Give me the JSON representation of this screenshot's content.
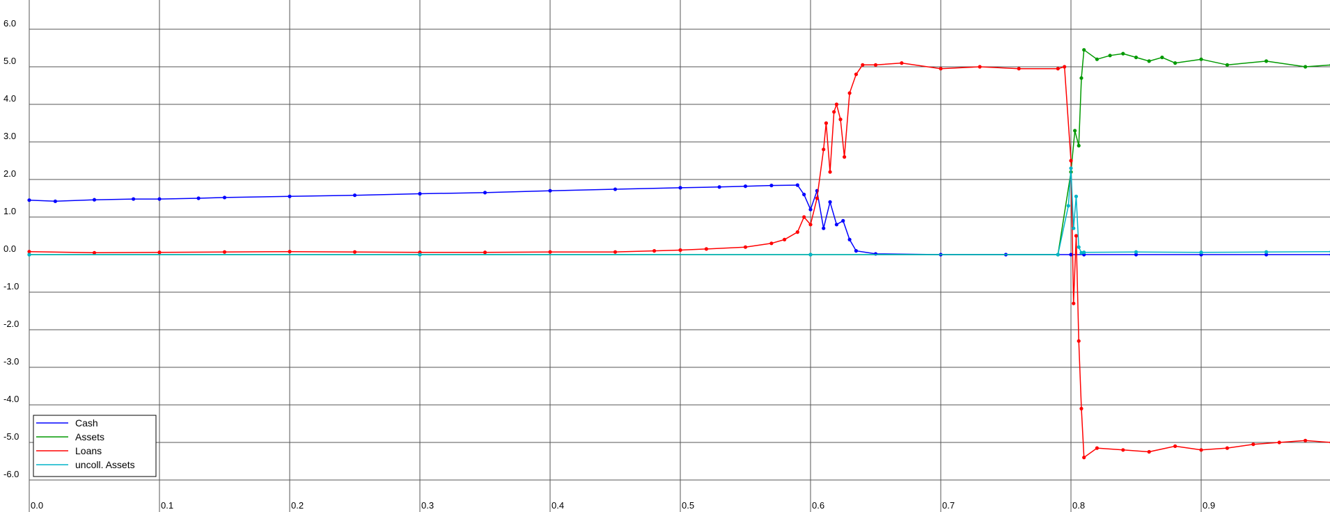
{
  "chart_data": {
    "type": "line",
    "title": "",
    "xlabel": "",
    "ylabel": "",
    "xlim": [
      0.0,
      1.0
    ],
    "ylim": [
      -6.5,
      6.5
    ],
    "x_ticks": [
      {
        "value": 0.0,
        "label": "0.0"
      },
      {
        "value": 0.1,
        "label": "0.1"
      },
      {
        "value": 0.2,
        "label": "0.2"
      },
      {
        "value": 0.3,
        "label": "0.3"
      },
      {
        "value": 0.4,
        "label": "0.4"
      },
      {
        "value": 0.5,
        "label": "0.5"
      },
      {
        "value": 0.6,
        "label": "0.6"
      },
      {
        "value": 0.7,
        "label": "0.7"
      },
      {
        "value": 0.8,
        "label": "0.8"
      },
      {
        "value": 0.9,
        "label": "0.9"
      }
    ],
    "y_ticks": [
      {
        "value": 6,
        "label": "6.0"
      },
      {
        "value": 5,
        "label": "5.0"
      },
      {
        "value": 4,
        "label": "4.0"
      },
      {
        "value": 3,
        "label": "3.0"
      },
      {
        "value": 2,
        "label": "2.0"
      },
      {
        "value": 1,
        "label": "1.0"
      },
      {
        "value": 0,
        "label": "0.0"
      },
      {
        "value": -1,
        "label": "-1.0"
      },
      {
        "value": -2,
        "label": "-2.0"
      },
      {
        "value": -3,
        "label": "-3.0"
      },
      {
        "value": -4,
        "label": "-4.0"
      },
      {
        "value": -5,
        "label": "-5.0"
      },
      {
        "value": -6,
        "label": "-6.0"
      }
    ],
    "grid": true,
    "legend_position": "bottom-left",
    "series": [
      {
        "name": "Cash",
        "color": "#0000ff",
        "x": [
          0.0,
          0.02,
          0.05,
          0.08,
          0.1,
          0.13,
          0.15,
          0.2,
          0.25,
          0.3,
          0.35,
          0.4,
          0.45,
          0.5,
          0.53,
          0.55,
          0.57,
          0.59,
          0.595,
          0.6,
          0.605,
          0.61,
          0.615,
          0.62,
          0.625,
          0.63,
          0.635,
          0.65,
          0.7,
          0.75,
          0.8,
          0.81,
          0.85,
          0.9,
          0.95,
          1.0
        ],
        "values": [
          1.45,
          1.42,
          1.46,
          1.48,
          1.48,
          1.5,
          1.52,
          1.55,
          1.58,
          1.62,
          1.65,
          1.7,
          1.74,
          1.78,
          1.8,
          1.82,
          1.84,
          1.85,
          1.6,
          1.2,
          1.7,
          0.7,
          1.4,
          0.8,
          0.9,
          0.4,
          0.1,
          0.02,
          0.0,
          0.0,
          0.0,
          0.0,
          0.0,
          0.0,
          0.0,
          0.0
        ]
      },
      {
        "name": "Assets",
        "color": "#009900",
        "x": [
          0.0,
          0.3,
          0.6,
          0.79,
          0.8,
          0.803,
          0.806,
          0.808,
          0.81,
          0.82,
          0.83,
          0.84,
          0.85,
          0.86,
          0.87,
          0.88,
          0.9,
          0.92,
          0.95,
          0.98,
          1.0
        ],
        "values": [
          0.0,
          0.0,
          0.0,
          0.0,
          2.2,
          3.3,
          2.9,
          4.7,
          5.45,
          5.2,
          5.3,
          5.35,
          5.25,
          5.15,
          5.25,
          5.1,
          5.2,
          5.05,
          5.15,
          5.0,
          5.05
        ]
      },
      {
        "name": "Loans",
        "color": "#ff0000",
        "x": [
          0.0,
          0.05,
          0.1,
          0.15,
          0.2,
          0.25,
          0.3,
          0.35,
          0.4,
          0.45,
          0.48,
          0.5,
          0.52,
          0.55,
          0.57,
          0.58,
          0.59,
          0.595,
          0.6,
          0.605,
          0.61,
          0.612,
          0.615,
          0.618,
          0.62,
          0.623,
          0.626,
          0.63,
          0.635,
          0.64,
          0.65,
          0.67,
          0.7,
          0.73,
          0.76,
          0.79,
          0.795,
          0.8,
          0.802,
          0.804,
          0.806,
          0.808,
          0.81,
          0.82,
          0.84,
          0.86,
          0.88,
          0.9,
          0.92,
          0.94,
          0.96,
          0.98,
          1.0
        ],
        "values": [
          0.08,
          0.05,
          0.06,
          0.07,
          0.08,
          0.07,
          0.06,
          0.06,
          0.07,
          0.07,
          0.1,
          0.12,
          0.15,
          0.2,
          0.3,
          0.4,
          0.6,
          1.0,
          0.8,
          1.5,
          2.8,
          3.5,
          2.2,
          3.8,
          4.0,
          3.6,
          2.6,
          4.3,
          4.8,
          5.05,
          5.05,
          5.1,
          4.95,
          5.0,
          4.95,
          4.95,
          5.0,
          2.5,
          -1.3,
          0.5,
          -2.3,
          -4.1,
          -5.4,
          -5.15,
          -5.2,
          -5.25,
          -5.1,
          -5.2,
          -5.15,
          -5.05,
          -5.0,
          -4.95,
          -5.0
        ]
      },
      {
        "name": "uncoll. Assets",
        "color": "#00b4c8",
        "x": [
          0.0,
          0.3,
          0.6,
          0.79,
          0.798,
          0.8,
          0.802,
          0.804,
          0.806,
          0.808,
          0.81,
          0.85,
          0.9,
          0.95,
          1.0
        ],
        "values": [
          0.0,
          0.0,
          0.0,
          0.0,
          1.3,
          2.3,
          0.7,
          1.55,
          0.2,
          0.05,
          0.06,
          0.07,
          0.06,
          0.07,
          0.08
        ]
      }
    ]
  }
}
